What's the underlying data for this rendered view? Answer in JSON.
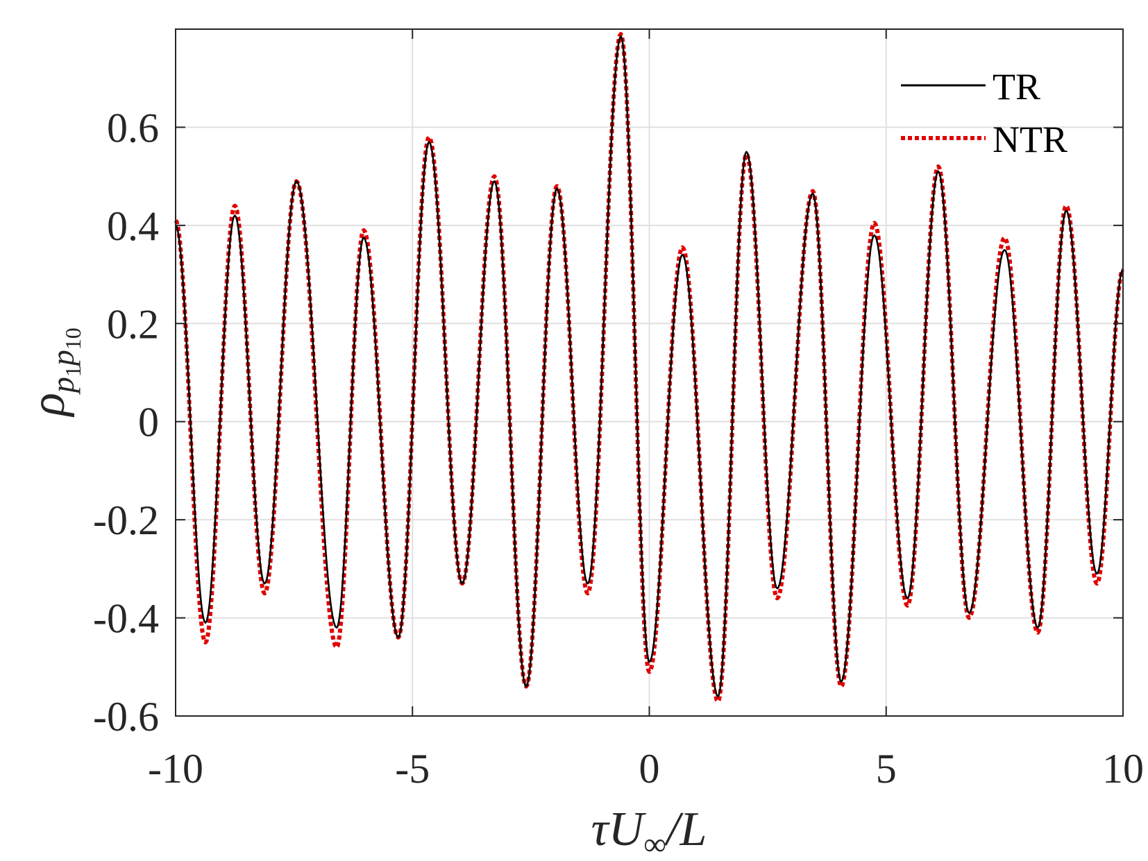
{
  "chart_data": {
    "type": "line",
    "title": "",
    "xlabel": {
      "symbol": "τU",
      "subscript": "∞",
      "suffix": "/L"
    },
    "ylabel": {
      "symbol": "ρ",
      "subscript": "p",
      "sub_index_1": "1",
      "sub_middle": "p",
      "sub_index_2": "10"
    },
    "xlim": [
      -10,
      10
    ],
    "ylim": [
      -0.6,
      0.8
    ],
    "xticks": [
      -10,
      -5,
      0,
      5,
      10
    ],
    "xtick_labels": [
      "-10",
      "-5",
      "0",
      "5",
      "10"
    ],
    "yticks": [
      -0.6,
      -0.4,
      -0.2,
      0,
      0.2,
      0.4,
      0.6
    ],
    "ytick_labels": [
      "-0.6",
      "-0.4",
      "-0.2",
      "0",
      "0.2",
      "0.4",
      "0.6"
    ],
    "grid": true,
    "legend_position": "top-right",
    "series": [
      {
        "name": "TR",
        "color": "#000000",
        "style": "solid",
        "x": [
          -10.0,
          -9.37,
          -8.75,
          -8.12,
          -7.45,
          -6.6,
          -6.03,
          -5.3,
          -4.65,
          -3.95,
          -3.27,
          -2.6,
          -1.95,
          -1.3,
          -0.6,
          0.0,
          0.7,
          1.45,
          2.05,
          2.7,
          3.45,
          4.05,
          4.75,
          5.45,
          6.1,
          6.75,
          7.5,
          8.2,
          8.8,
          9.45,
          10.0
        ],
        "y": [
          0.4,
          -0.41,
          0.42,
          -0.33,
          0.49,
          -0.42,
          0.375,
          -0.44,
          0.57,
          -0.33,
          0.49,
          -0.54,
          0.475,
          -0.33,
          0.785,
          -0.49,
          0.34,
          -0.56,
          0.55,
          -0.34,
          0.465,
          -0.53,
          0.38,
          -0.36,
          0.51,
          -0.39,
          0.35,
          -0.42,
          0.43,
          -0.31,
          0.31
        ]
      },
      {
        "name": "NTR",
        "color": "#e00000",
        "style": "dotted",
        "x": [
          -10.0,
          -9.37,
          -8.75,
          -8.12,
          -7.45,
          -6.6,
          -6.03,
          -5.3,
          -4.65,
          -3.95,
          -3.27,
          -2.6,
          -1.95,
          -1.3,
          -0.6,
          0.0,
          0.7,
          1.45,
          2.05,
          2.7,
          3.45,
          4.05,
          4.75,
          5.45,
          6.1,
          6.75,
          7.5,
          8.2,
          8.8,
          9.45,
          10.0
        ],
        "y": [
          0.41,
          -0.45,
          0.44,
          -0.35,
          0.49,
          -0.46,
          0.39,
          -0.44,
          0.58,
          -0.33,
          0.5,
          -0.54,
          0.48,
          -0.35,
          0.79,
          -0.51,
          0.355,
          -0.57,
          0.545,
          -0.36,
          0.47,
          -0.54,
          0.405,
          -0.375,
          0.52,
          -0.4,
          0.375,
          -0.43,
          0.44,
          -0.33,
          0.31
        ]
      }
    ]
  }
}
